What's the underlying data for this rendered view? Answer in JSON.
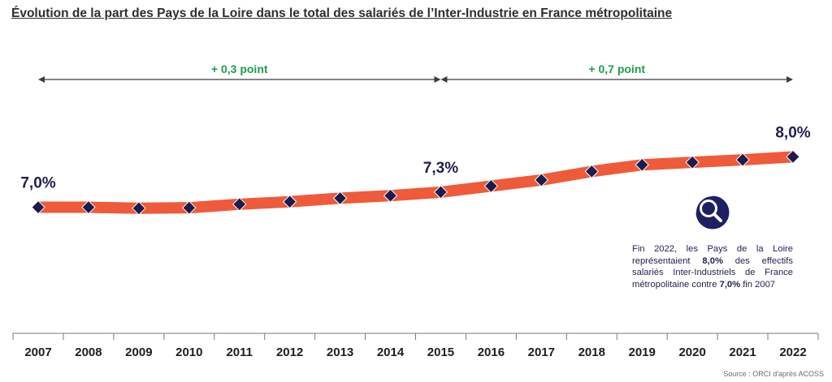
{
  "title": "Évolution de la part des Pays de la Loire dans le total des salariés de l’Inter-Industrie en France métropolitaine",
  "chart_data": {
    "type": "line",
    "categories": [
      "2007",
      "2008",
      "2009",
      "2010",
      "2011",
      "2012",
      "2013",
      "2014",
      "2015",
      "2016",
      "2017",
      "2018",
      "2019",
      "2020",
      "2021",
      "2022"
    ],
    "series": [
      {
        "values": [
          7.0,
          7.0,
          6.98,
          6.99,
          7.06,
          7.11,
          7.18,
          7.23,
          7.3,
          7.42,
          7.54,
          7.71,
          7.84,
          7.89,
          7.94,
          8.0
        ]
      }
    ],
    "data_labels": [
      {
        "category": "2007",
        "text": "7,0%"
      },
      {
        "category": "2015",
        "text": "7,3%"
      },
      {
        "category": "2022",
        "text": "8,0%"
      }
    ],
    "periods": [
      {
        "from": "2007",
        "to": "2015",
        "label": "+ 0,3 point"
      },
      {
        "from": "2015",
        "to": "2022",
        "label": "+ 0,7 point"
      }
    ],
    "ylim": [
      5.0,
      9.5
    ],
    "grid": false,
    "line_color": "#ee5a3a",
    "marker_color": "#1b1b4d",
    "arrow_color": "#3c3c3c",
    "period_label_color": "#1f9d4a"
  },
  "note": {
    "icon": "magnifier-icon",
    "part1": "Fin 2022, les Pays de la Loire représentaient ",
    "value1": "8,0%",
    "part2": " des effectifs salariés Inter-Industriels de France métropolitaine contre ",
    "value2": "7,0%",
    "part3": " fin 2007"
  },
  "source": "Source : ORCI d'après ACOSS"
}
